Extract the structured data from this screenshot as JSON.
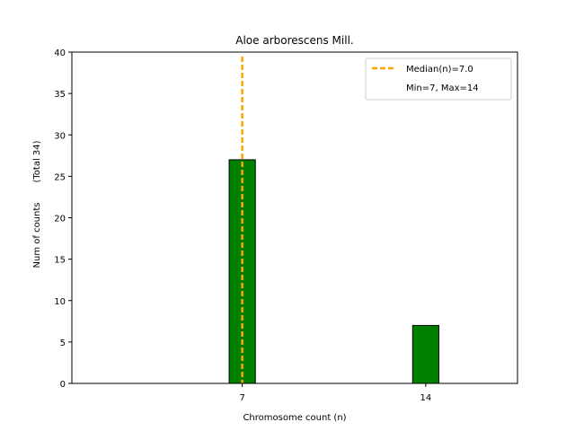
{
  "chart_data": {
    "type": "bar",
    "title": "Aloe arborescens Mill.",
    "xlabel": "Chromosome count (n)",
    "ylabel": "Num of counts",
    "ylabel_note": "(Total 34)",
    "categories": [
      "7",
      "14"
    ],
    "x": [
      7,
      14
    ],
    "values": [
      27,
      7
    ],
    "ylim": [
      0,
      40
    ],
    "xlim": [
      0.5,
      17.5
    ],
    "yticks": [
      0,
      5,
      10,
      15,
      20,
      25,
      30,
      35,
      40
    ],
    "xticks": [
      7,
      14
    ],
    "bar_width": 1,
    "bar_color": "#008000",
    "bar_edge_color": "#000000",
    "median": {
      "value": 7.0,
      "color": "#ffa500",
      "label": "Median(n)=7.0"
    },
    "legend": {
      "placement": "top-right",
      "entries": [
        "Median(n)=7.0",
        "Min=7, Max=14"
      ]
    },
    "grid": false
  }
}
